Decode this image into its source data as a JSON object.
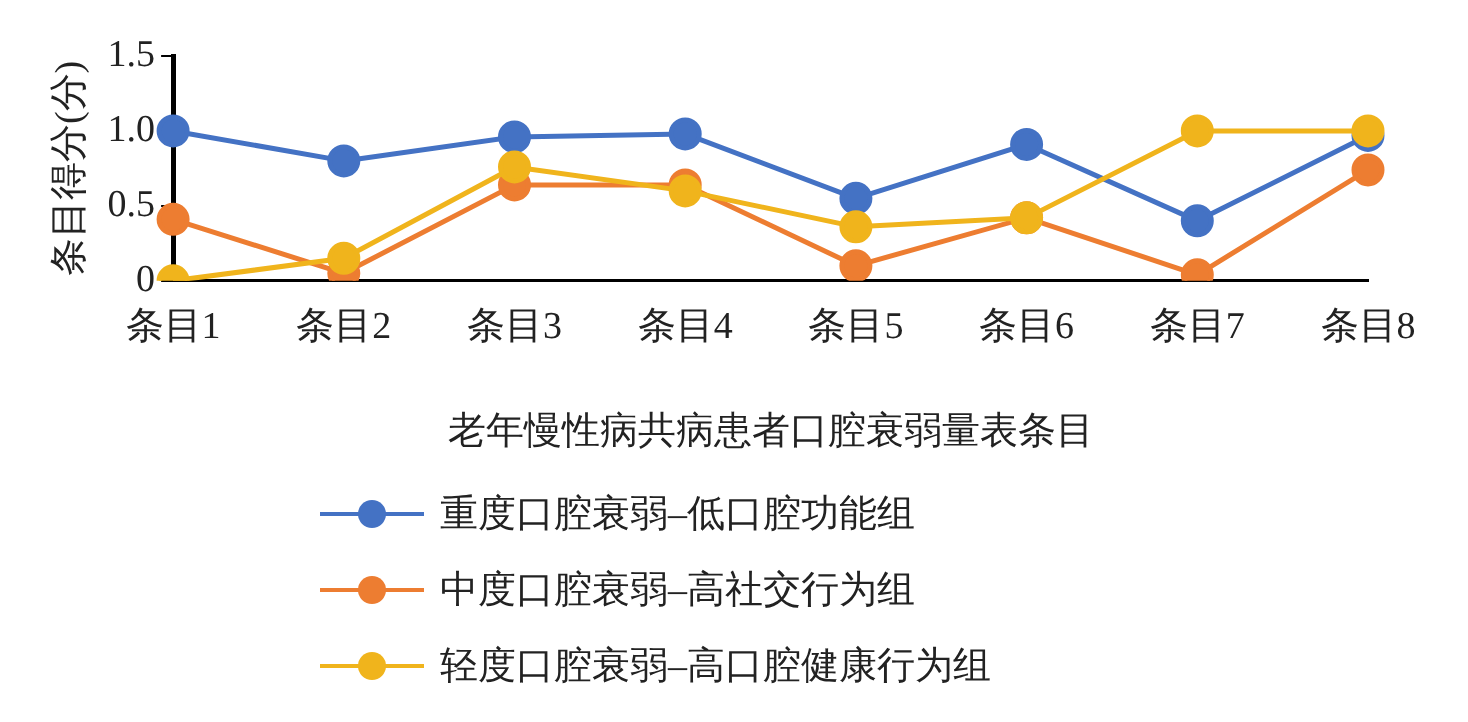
{
  "chart_data": {
    "type": "line",
    "xlabel": "老年慢性病共病患者口腔衰弱量表条目",
    "ylabel": "条目得分(分)",
    "categories": [
      "条目1",
      "条目2",
      "条目3",
      "条目4",
      "条目5",
      "条目6",
      "条目7",
      "条目8"
    ],
    "series": [
      {
        "name": "重度口腔衰弱–低口腔功能组",
        "color": "#4472c4",
        "values": [
          1.0,
          0.8,
          0.96,
          0.98,
          0.55,
          0.91,
          0.4,
          0.97
        ]
      },
      {
        "name": "中度口腔衰弱–高社交行为组",
        "color": "#ed7d31",
        "values": [
          0.41,
          0.05,
          0.64,
          0.64,
          0.1,
          0.42,
          0.04,
          0.74
        ]
      },
      {
        "name": "轻度口腔衰弱–高口腔健康行为组",
        "color": "#f0b41c",
        "values": [
          0,
          0.15,
          0.76,
          0.6,
          0.36,
          0.42,
          1.0,
          1.0
        ]
      }
    ],
    "ylim": [
      0,
      1.5
    ],
    "yticks": [
      0,
      {
        "value": 0.5,
        "label": "0.5"
      },
      {
        "value": 1,
        "label": "1.0"
      },
      1.5
    ],
    "grid": false,
    "legend": "bottom",
    "marker": "circle",
    "line_style": "solid"
  }
}
